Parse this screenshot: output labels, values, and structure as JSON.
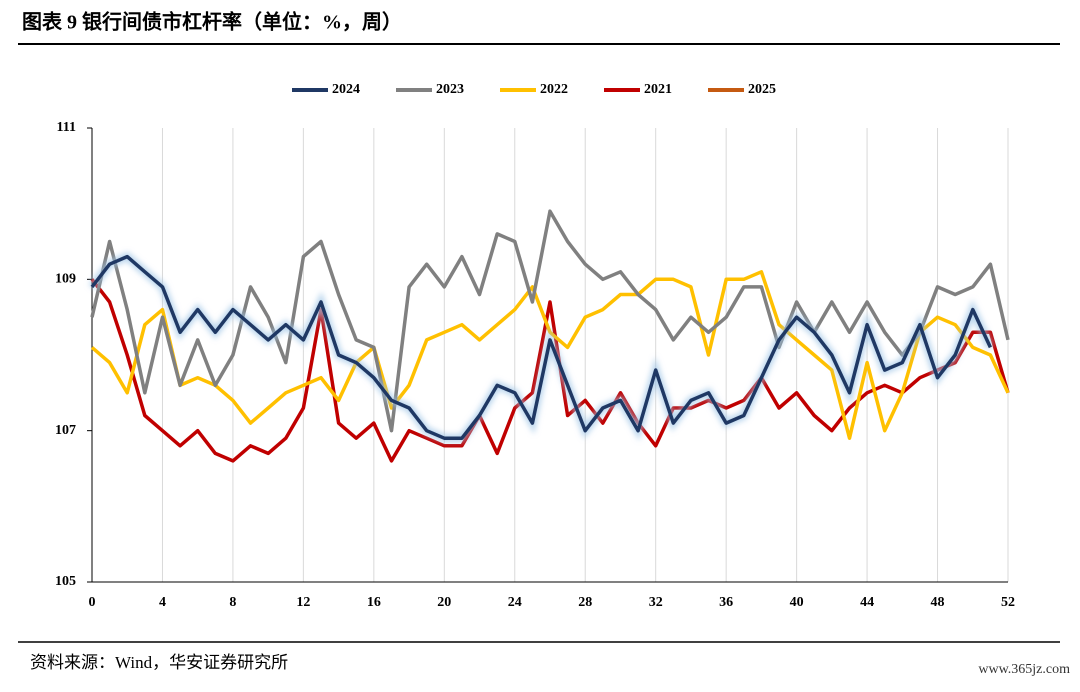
{
  "chart_data": {
    "type": "line",
    "title": "图表 9 银行间债市杠杆率（单位：%，周）",
    "x": [
      0,
      1,
      2,
      3,
      4,
      5,
      6,
      7,
      8,
      9,
      10,
      11,
      12,
      13,
      14,
      15,
      16,
      17,
      18,
      19,
      20,
      21,
      22,
      23,
      24,
      25,
      26,
      27,
      28,
      29,
      30,
      31,
      32,
      33,
      34,
      35,
      36,
      37,
      38,
      39,
      40,
      41,
      42,
      43,
      44,
      45,
      46,
      47,
      48,
      49,
      50,
      51,
      52
    ],
    "xlim": [
      0,
      52
    ],
    "xticks": [
      0,
      4,
      8,
      12,
      16,
      20,
      24,
      28,
      32,
      36,
      40,
      44,
      48,
      52
    ],
    "ylim": [
      105,
      111
    ],
    "yticks": [
      105,
      107,
      109,
      111
    ],
    "grid": "x",
    "legend": "top",
    "series": [
      {
        "name": "2024",
        "color": "#1f3864",
        "values": [
          108.9,
          109.2,
          109.3,
          109.1,
          108.9,
          108.3,
          108.6,
          108.3,
          108.6,
          108.4,
          108.2,
          108.4,
          108.2,
          108.7,
          108.0,
          107.9,
          107.7,
          107.4,
          107.3,
          107.0,
          106.9,
          106.9,
          107.2,
          107.6,
          107.5,
          107.1,
          108.2,
          107.6,
          107.0,
          107.3,
          107.4,
          107.0,
          107.8,
          107.1,
          107.4,
          107.5,
          107.1,
          107.2,
          107.7,
          108.2,
          108.5,
          108.3,
          108.0,
          107.5,
          108.4,
          107.8,
          107.9,
          108.4,
          107.7,
          108.0,
          108.6,
          108.1,
          null
        ]
      },
      {
        "name": "2023",
        "color": "#808080",
        "values": [
          108.5,
          109.5,
          108.6,
          107.5,
          108.5,
          107.6,
          108.2,
          107.6,
          108.0,
          108.9,
          108.5,
          107.9,
          109.3,
          109.5,
          108.8,
          108.2,
          108.1,
          107.0,
          108.9,
          109.2,
          108.9,
          109.3,
          108.8,
          109.6,
          109.5,
          108.7,
          109.9,
          109.5,
          109.2,
          109.0,
          109.1,
          108.8,
          108.6,
          108.2,
          108.5,
          108.3,
          108.5,
          108.9,
          108.9,
          108.1,
          108.7,
          108.3,
          108.7,
          108.3,
          108.7,
          108.3,
          108.0,
          108.3,
          108.9,
          108.8,
          108.9,
          109.2,
          108.2
        ]
      },
      {
        "name": "2022",
        "color": "#ffc000",
        "values": [
          108.1,
          107.9,
          107.5,
          108.4,
          108.6,
          107.6,
          107.7,
          107.6,
          107.4,
          107.1,
          107.3,
          107.5,
          107.6,
          107.7,
          107.4,
          107.9,
          108.1,
          107.3,
          107.6,
          108.2,
          108.3,
          108.4,
          108.2,
          108.4,
          108.6,
          108.9,
          108.3,
          108.1,
          108.5,
          108.6,
          108.8,
          108.8,
          109.0,
          109.0,
          108.9,
          108.0,
          109.0,
          109.0,
          109.1,
          108.4,
          108.2,
          108.0,
          107.8,
          106.9,
          107.9,
          107.0,
          107.5,
          108.3,
          108.5,
          108.4,
          108.1,
          108.0,
          107.5
        ]
      },
      {
        "name": "2021",
        "color": "#c00000",
        "values": [
          109.0,
          108.7,
          108.0,
          107.2,
          107.0,
          106.8,
          107.0,
          106.7,
          106.6,
          106.8,
          106.7,
          106.9,
          107.3,
          108.6,
          107.1,
          106.9,
          107.1,
          106.6,
          107.0,
          106.9,
          106.8,
          106.8,
          107.2,
          106.7,
          107.3,
          107.5,
          108.7,
          107.2,
          107.4,
          107.1,
          107.5,
          107.1,
          106.8,
          107.3,
          107.3,
          107.4,
          107.3,
          107.4,
          107.7,
          107.3,
          107.5,
          107.2,
          107.0,
          107.3,
          107.5,
          107.6,
          107.5,
          107.7,
          107.8,
          107.9,
          108.3,
          108.3,
          107.5
        ]
      },
      {
        "name": "2025",
        "color": "#c55a11",
        "values": [
          null,
          null,
          null,
          null,
          null,
          null,
          null,
          null,
          null,
          null,
          null,
          null,
          null,
          null,
          null,
          null,
          null,
          null,
          null,
          null,
          null,
          null,
          null,
          null,
          null,
          null,
          null,
          null,
          null,
          null,
          null,
          null,
          null,
          null,
          null,
          null,
          null,
          null,
          null,
          null,
          null,
          null,
          null,
          null,
          null,
          null,
          null,
          null,
          null,
          null,
          null,
          null,
          null
        ]
      }
    ]
  },
  "source": "资料来源：Wind，华安证券研究所",
  "watermark": "www.365jz.com"
}
